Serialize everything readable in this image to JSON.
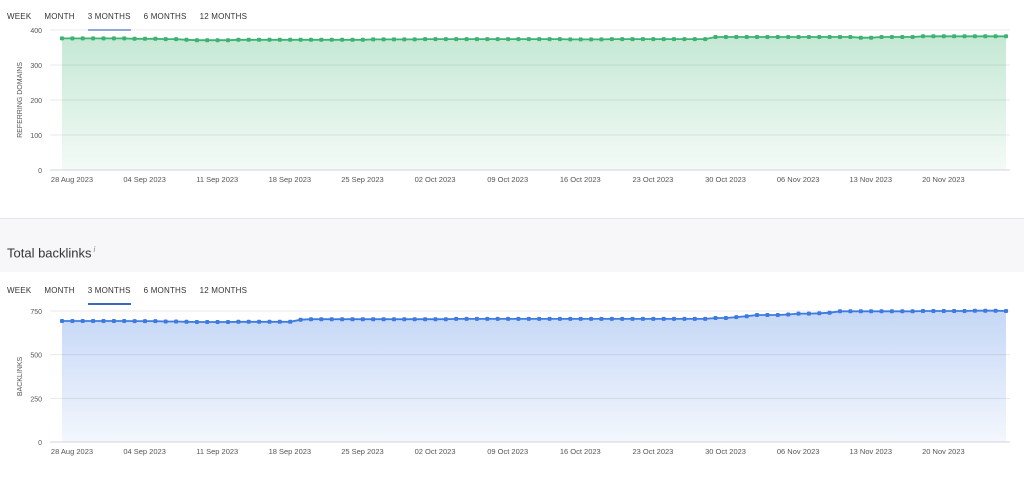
{
  "tabs_top": [
    "WEEK",
    "MONTH",
    "3 MONTHS",
    "6 MONTHS",
    "12 MONTHS"
  ],
  "tabs_bottom": [
    "WEEK",
    "MONTH",
    "3 MONTHS",
    "6 MONTHS",
    "12 MONTHS"
  ],
  "active_tab": "3 MONTHS",
  "section_title": "Total backlinks",
  "info_mark": "i",
  "colors": {
    "referring": "#3cb371",
    "backlinks": "#3d7be0",
    "accent": "#3a66c4"
  },
  "chart_data": [
    {
      "type": "area",
      "ylabel": "REFERRING DOMAINS",
      "ylim": [
        0,
        400
      ],
      "yticks": [
        0,
        100,
        200,
        300,
        400
      ],
      "x_range": [
        "2023-08-28",
        "2023-11-25"
      ],
      "xtick_labels": [
        "28 Aug 2023",
        "04 Sep 2023",
        "11 Sep 2023",
        "18 Sep 2023",
        "25 Sep 2023",
        "02 Oct 2023",
        "09 Oct 2023",
        "16 Oct 2023",
        "23 Oct 2023",
        "30 Oct 2023",
        "06 Nov 2023",
        "13 Nov 2023",
        "20 Nov 2023"
      ],
      "grid": true,
      "values": [
        376,
        376,
        376,
        376,
        376,
        376,
        376,
        375,
        375,
        375,
        374,
        374,
        372,
        371,
        371,
        371,
        371,
        372,
        372,
        372,
        372,
        372,
        372,
        372,
        372,
        372,
        372,
        372,
        372,
        372,
        373,
        373,
        373,
        373,
        373,
        374,
        374,
        374,
        374,
        374,
        374,
        374,
        374,
        374,
        374,
        374,
        374,
        374,
        374,
        373,
        373,
        373,
        373,
        374,
        374,
        374,
        374,
        374,
        374,
        374,
        374,
        374,
        374,
        380,
        380,
        380,
        380,
        380,
        380,
        380,
        380,
        380,
        380,
        380,
        380,
        380,
        380,
        378,
        378,
        380,
        380,
        380,
        380,
        382,
        382,
        382,
        382,
        382,
        382,
        382,
        382,
        382
      ]
    },
    {
      "type": "area",
      "ylabel": "BACKLINKS",
      "ylim": [
        0,
        750
      ],
      "yticks": [
        0,
        250,
        500,
        750
      ],
      "x_range": [
        "2023-08-28",
        "2023-11-25"
      ],
      "xtick_labels": [
        "28 Aug 2023",
        "04 Sep 2023",
        "11 Sep 2023",
        "18 Sep 2023",
        "25 Sep 2023",
        "02 Oct 2023",
        "09 Oct 2023",
        "16 Oct 2023",
        "23 Oct 2023",
        "30 Oct 2023",
        "06 Nov 2023",
        "13 Nov 2023",
        "20 Nov 2023"
      ],
      "grid": true,
      "values": [
        693,
        693,
        693,
        693,
        693,
        693,
        693,
        692,
        692,
        692,
        690,
        690,
        688,
        687,
        687,
        687,
        687,
        688,
        688,
        688,
        688,
        688,
        688,
        700,
        703,
        703,
        703,
        703,
        703,
        703,
        703,
        703,
        703,
        703,
        703,
        703,
        703,
        703,
        705,
        705,
        705,
        705,
        705,
        705,
        705,
        705,
        705,
        705,
        705,
        705,
        705,
        705,
        705,
        705,
        705,
        705,
        705,
        705,
        705,
        705,
        705,
        705,
        705,
        710,
        710,
        715,
        720,
        727,
        727,
        727,
        730,
        735,
        735,
        737,
        740,
        748,
        748,
        748,
        748,
        748,
        748,
        748,
        748,
        750,
        750,
        750,
        750,
        750,
        752,
        752,
        752,
        750
      ]
    }
  ]
}
